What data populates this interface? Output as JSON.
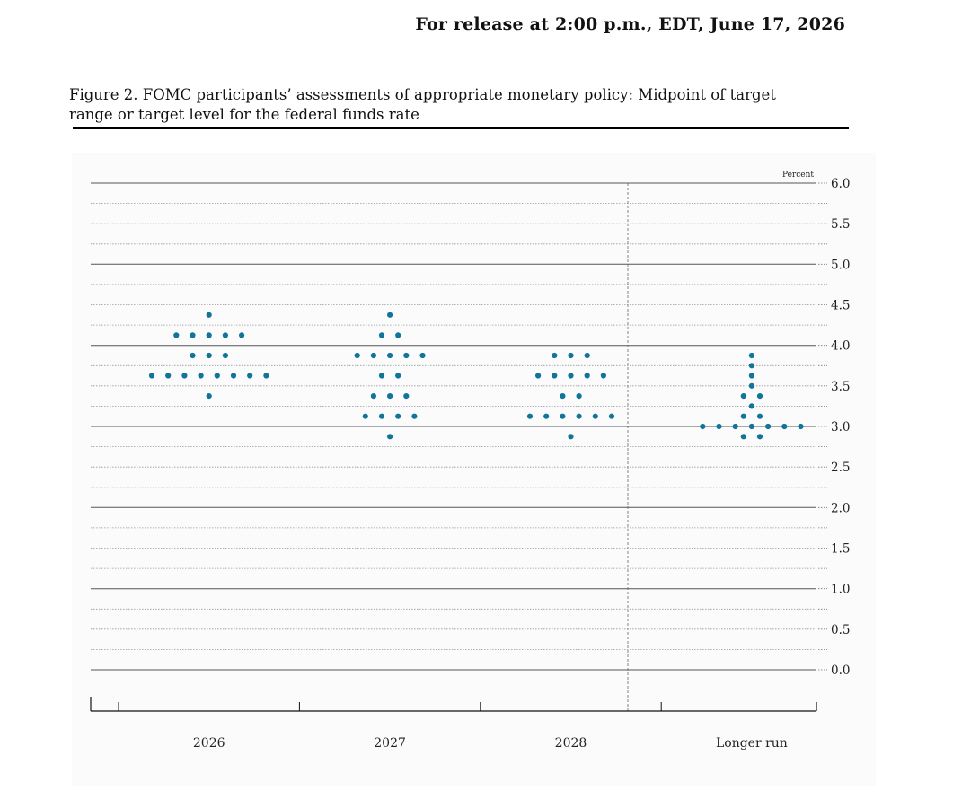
{
  "header": {
    "release": "For release at 2:00 p.m., EDT, June 17, 2026"
  },
  "figure": {
    "title": "Figure 2. FOMC participants’ assessments of appropriate monetary policy: Midpoint of target range or target level for the federal funds rate"
  },
  "chart_data": {
    "type": "scatter",
    "unit": "Percent",
    "categories": [
      "2026",
      "2027",
      "2028",
      "Longer run"
    ],
    "ylim": [
      0,
      6
    ],
    "yticks": [
      "0.0",
      "0.5",
      "1.0",
      "1.5",
      "2.0",
      "2.5",
      "3.0",
      "3.5",
      "4.0",
      "4.5",
      "5.0",
      "5.5",
      "6.0"
    ],
    "grid": true,
    "dot_color": "#11759a",
    "dots": [
      {
        "category": "2026",
        "y": 4.375,
        "count": 1
      },
      {
        "category": "2026",
        "y": 4.125,
        "count": 5
      },
      {
        "category": "2026",
        "y": 3.875,
        "count": 3
      },
      {
        "category": "2026",
        "y": 3.625,
        "count": 8
      },
      {
        "category": "2026",
        "y": 3.375,
        "count": 1
      },
      {
        "category": "2027",
        "y": 4.375,
        "count": 1
      },
      {
        "category": "2027",
        "y": 4.125,
        "count": 2
      },
      {
        "category": "2027",
        "y": 3.875,
        "count": 5
      },
      {
        "category": "2027",
        "y": 3.625,
        "count": 2
      },
      {
        "category": "2027",
        "y": 3.375,
        "count": 3
      },
      {
        "category": "2027",
        "y": 3.125,
        "count": 4
      },
      {
        "category": "2027",
        "y": 2.875,
        "count": 1
      },
      {
        "category": "2028",
        "y": 3.875,
        "count": 3
      },
      {
        "category": "2028",
        "y": 3.625,
        "count": 5
      },
      {
        "category": "2028",
        "y": 3.375,
        "count": 2
      },
      {
        "category": "2028",
        "y": 3.125,
        "count": 6
      },
      {
        "category": "2028",
        "y": 2.875,
        "count": 1
      },
      {
        "category": "Longer run",
        "y": 3.875,
        "count": 1
      },
      {
        "category": "Longer run",
        "y": 3.75,
        "count": 1
      },
      {
        "category": "Longer run",
        "y": 3.625,
        "count": 1
      },
      {
        "category": "Longer run",
        "y": 3.5,
        "count": 1
      },
      {
        "category": "Longer run",
        "y": 3.375,
        "count": 2
      },
      {
        "category": "Longer run",
        "y": 3.25,
        "count": 1
      },
      {
        "category": "Longer run",
        "y": 3.125,
        "count": 2
      },
      {
        "category": "Longer run",
        "y": 3.0,
        "count": 7
      },
      {
        "category": "Longer run",
        "y": 2.875,
        "count": 2
      }
    ]
  }
}
